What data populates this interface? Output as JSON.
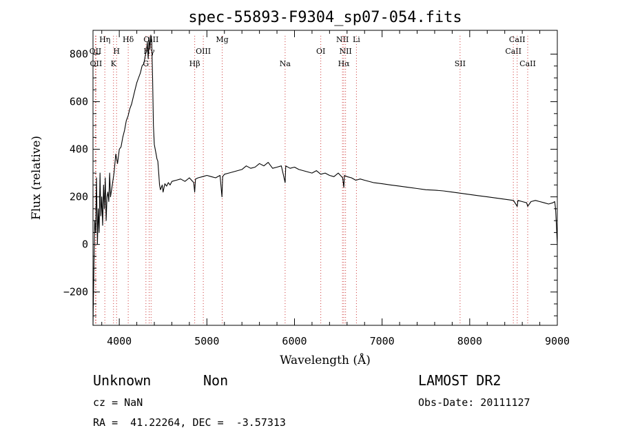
{
  "footer": {
    "class": "Unknown",
    "subclass": "Non",
    "survey": "LAMOST DR2",
    "cz": "cz = NaN",
    "obs_date": "Obs-Date: 20111127",
    "radec": "RA =  41.22264, DEC =  -3.57313"
  },
  "colors": {
    "line_marker": "#cc3333",
    "spectrum": "#000000"
  },
  "chart_data": {
    "type": "line",
    "title": "spec-55893-F9304_sp07-054.fits",
    "xlabel": "Wavelength (Å)",
    "ylabel": "Flux (relative)",
    "xlim": [
      3700,
      9000
    ],
    "ylim": [
      -340,
      900
    ],
    "xticks": [
      4000,
      5000,
      6000,
      7000,
      8000,
      9000
    ],
    "yticks": [
      -200,
      0,
      200,
      400,
      600,
      800
    ],
    "grid": false,
    "series": [
      {
        "x": [
          3700,
          3710,
          3720,
          3730,
          3740,
          3750,
          3760,
          3770,
          3780,
          3790,
          3800,
          3810,
          3820,
          3830,
          3840,
          3850,
          3860,
          3870,
          3880,
          3890,
          3900,
          3920,
          3940,
          3960,
          3980,
          4000,
          4020,
          4040,
          4060,
          4080,
          4100,
          4120,
          4140,
          4160,
          4180,
          4200,
          4220,
          4240,
          4260,
          4280,
          4300,
          4310,
          4320,
          4330,
          4340,
          4350,
          4360,
          4370,
          4380,
          4390,
          4400,
          4410,
          4420,
          4430,
          4440,
          4450,
          4460,
          4470,
          4480,
          4490,
          4500,
          4520,
          4540,
          4560,
          4580,
          4600,
          4650,
          4700,
          4750,
          4800,
          4850,
          4861,
          4870,
          4900,
          4950,
          5000,
          5050,
          5100,
          5150,
          5172,
          5180,
          5200,
          5250,
          5300,
          5350,
          5400,
          5450,
          5500,
          5550,
          5600,
          5650,
          5700,
          5750,
          5800,
          5850,
          5893,
          5900,
          5950,
          6000,
          6050,
          6100,
          6150,
          6200,
          6250,
          6300,
          6350,
          6400,
          6450,
          6500,
          6550,
          6563,
          6570,
          6600,
          6650,
          6700,
          6750,
          6800,
          6900,
          7000,
          7100,
          7200,
          7300,
          7400,
          7500,
          7600,
          7700,
          7800,
          7900,
          8000,
          8100,
          8200,
          8300,
          8400,
          8500,
          8542,
          8550,
          8600,
          8650,
          8662,
          8700,
          8750,
          8800,
          8850,
          8900,
          8950,
          8970,
          8980,
          8990,
          9000
        ],
        "y": [
          -340,
          -100,
          100,
          50,
          280,
          0,
          150,
          50,
          300,
          120,
          200,
          80,
          250,
          150,
          280,
          100,
          200,
          220,
          180,
          300,
          200,
          250,
          300,
          380,
          340,
          400,
          410,
          450,
          480,
          520,
          540,
          570,
          590,
          620,
          650,
          680,
          700,
          720,
          750,
          760,
          800,
          810,
          850,
          780,
          870,
          820,
          880,
          860,
          700,
          500,
          420,
          400,
          380,
          360,
          350,
          300,
          250,
          230,
          240,
          250,
          220,
          255,
          245,
          260,
          250,
          265,
          270,
          275,
          265,
          280,
          260,
          220,
          275,
          280,
          285,
          290,
          285,
          280,
          290,
          200,
          285,
          295,
          300,
          305,
          310,
          315,
          330,
          320,
          325,
          340,
          330,
          345,
          320,
          325,
          330,
          260,
          330,
          320,
          325,
          315,
          310,
          305,
          300,
          310,
          295,
          300,
          290,
          285,
          300,
          280,
          240,
          290,
          285,
          280,
          270,
          275,
          270,
          260,
          255,
          250,
          245,
          240,
          235,
          230,
          228,
          225,
          220,
          215,
          210,
          205,
          200,
          195,
          190,
          185,
          160,
          185,
          180,
          175,
          160,
          180,
          185,
          180,
          175,
          170,
          175,
          180,
          150,
          80,
          0
        ]
      }
    ],
    "lines": [
      {
        "wave": 3727,
        "label": "OII",
        "row": 1
      },
      {
        "wave": 3734,
        "label": "OII",
        "row": 2
      },
      {
        "wave": 3835,
        "label": "Hη",
        "row": 0
      },
      {
        "wave": 3934,
        "label": "K",
        "row": 2
      },
      {
        "wave": 3969,
        "label": "H",
        "row": 1
      },
      {
        "wave": 4102,
        "label": "Hδ",
        "row": 0
      },
      {
        "wave": 4304,
        "label": "G",
        "row": 2
      },
      {
        "wave": 4341,
        "label": "Hγ",
        "row": 1
      },
      {
        "wave": 4363,
        "label": "OIII",
        "row": 0
      },
      {
        "wave": 4861,
        "label": "Hβ",
        "row": 2
      },
      {
        "wave": 4959,
        "label": "OIII",
        "row": 1
      },
      {
        "wave": 5175,
        "label": "Mg",
        "row": 0
      },
      {
        "wave": 5893,
        "label": "Na",
        "row": 2
      },
      {
        "wave": 6300,
        "label": "OI",
        "row": 1
      },
      {
        "wave": 6548,
        "label": "NII",
        "row": 0
      },
      {
        "wave": 6563,
        "label": "Hα",
        "row": 2
      },
      {
        "wave": 6583,
        "label": "NII",
        "row": 1
      },
      {
        "wave": 6707,
        "label": "Li",
        "row": 0
      },
      {
        "wave": 7890,
        "label": "SII",
        "row": 2
      },
      {
        "wave": 8498,
        "label": "CaII",
        "row": 1
      },
      {
        "wave": 8542,
        "label": "CaII",
        "row": 0
      },
      {
        "wave": 8662,
        "label": "CaII",
        "row": 2
      }
    ]
  }
}
